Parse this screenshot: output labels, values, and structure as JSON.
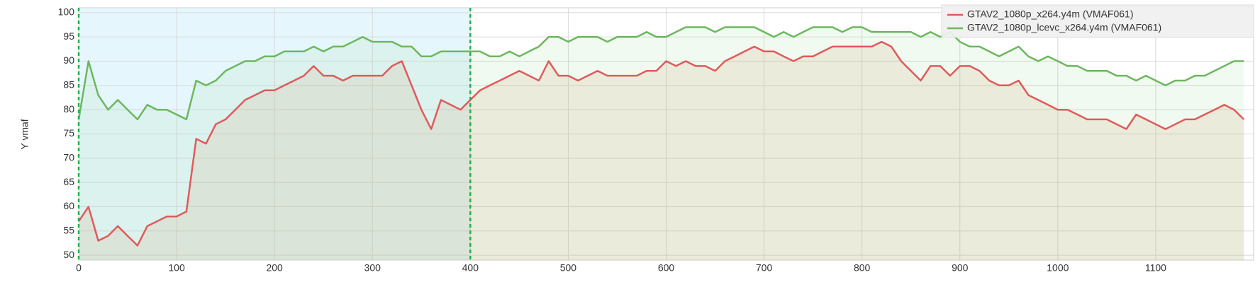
{
  "chart_data": {
    "type": "line",
    "y_label": "Y vmaf",
    "x": [
      0,
      10,
      20,
      30,
      40,
      50,
      60,
      70,
      80,
      90,
      100,
      110,
      120,
      130,
      140,
      150,
      160,
      170,
      180,
      190,
      200,
      210,
      220,
      230,
      240,
      250,
      260,
      270,
      280,
      290,
      300,
      310,
      320,
      330,
      340,
      350,
      360,
      370,
      380,
      390,
      400,
      410,
      420,
      430,
      440,
      450,
      460,
      470,
      480,
      490,
      500,
      510,
      520,
      530,
      540,
      550,
      560,
      570,
      580,
      590,
      600,
      610,
      620,
      630,
      640,
      650,
      660,
      670,
      680,
      690,
      700,
      710,
      720,
      730,
      740,
      750,
      760,
      770,
      780,
      790,
      800,
      810,
      820,
      830,
      840,
      850,
      860,
      870,
      880,
      890,
      900,
      910,
      920,
      930,
      940,
      950,
      960,
      970,
      980,
      990,
      1000,
      1010,
      1020,
      1030,
      1040,
      1050,
      1060,
      1070,
      1080,
      1090,
      1100,
      1110,
      1120,
      1130,
      1140,
      1150,
      1160,
      1170,
      1180,
      1190
    ],
    "series": [
      {
        "name": "GTAV2_1080p_x264.y4m (VMAF061)",
        "color": "#e05a5a",
        "fill": "rgba(225,170,130,0.2)",
        "values": [
          57,
          60,
          53,
          54,
          56,
          54,
          52,
          56,
          57,
          58,
          58,
          59,
          74,
          73,
          77,
          78,
          80,
          82,
          83,
          84,
          84,
          85,
          86,
          87,
          89,
          87,
          87,
          86,
          87,
          87,
          87,
          87,
          89,
          90,
          85,
          80,
          76,
          82,
          81,
          80,
          82,
          84,
          85,
          86,
          87,
          88,
          87,
          86,
          90,
          87,
          87,
          86,
          87,
          88,
          87,
          87,
          87,
          87,
          88,
          88,
          90,
          89,
          90,
          89,
          89,
          88,
          90,
          91,
          92,
          93,
          92,
          92,
          91,
          90,
          91,
          91,
          92,
          93,
          93,
          93,
          93,
          93,
          94,
          93,
          90,
          88,
          86,
          89,
          89,
          87,
          89,
          89,
          88,
          86,
          85,
          85,
          86,
          83,
          82,
          81,
          80,
          80,
          79,
          78,
          78,
          78,
          77,
          76,
          79,
          78,
          77,
          76,
          77,
          78,
          78,
          79,
          80,
          81,
          80,
          78
        ]
      },
      {
        "name": "GTAV2_1080p_lcevc_x264.y4m (VMAF061)",
        "color": "#6cb85e",
        "fill": "rgba(140,210,140,0.12)",
        "values": [
          78,
          90,
          83,
          80,
          82,
          80,
          78,
          81,
          80,
          80,
          79,
          78,
          86,
          85,
          86,
          88,
          89,
          90,
          90,
          91,
          91,
          92,
          92,
          92,
          93,
          92,
          93,
          93,
          94,
          95,
          94,
          94,
          94,
          93,
          93,
          91,
          91,
          92,
          92,
          92,
          92,
          92,
          91,
          91,
          92,
          91,
          92,
          93,
          95,
          95,
          94,
          95,
          95,
          95,
          94,
          95,
          95,
          95,
          96,
          95,
          95,
          96,
          97,
          97,
          97,
          96,
          97,
          97,
          97,
          97,
          96,
          95,
          96,
          95,
          96,
          97,
          97,
          97,
          96,
          97,
          97,
          96,
          96,
          96,
          96,
          96,
          95,
          96,
          95,
          96,
          94,
          93,
          93,
          92,
          91,
          92,
          93,
          91,
          90,
          91,
          90,
          89,
          89,
          88,
          88,
          88,
          87,
          87,
          86,
          87,
          86,
          85,
          86,
          86,
          87,
          87,
          88,
          89,
          90,
          90
        ]
      }
    ],
    "highlight_range": [
      0,
      400
    ],
    "xlim": [
      0,
      1200
    ],
    "ylim": [
      49,
      101
    ],
    "xticks": [
      0,
      100,
      200,
      300,
      400,
      500,
      600,
      700,
      800,
      900,
      1000,
      1100
    ],
    "yticks": [
      50,
      55,
      60,
      65,
      70,
      75,
      80,
      85,
      90,
      95,
      100
    ],
    "grid": true,
    "legend": "top-right"
  }
}
